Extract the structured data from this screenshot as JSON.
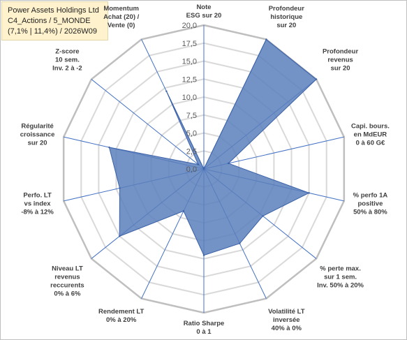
{
  "title": {
    "line1": "Power Assets Holdings Ltd",
    "line2": "C4_Actions / 5_MONDE",
    "line3": "(7,1% | 11,4%) / 2026W09"
  },
  "chart_data": {
    "type": "radar",
    "rmax": 20,
    "ticks": [
      "0,0",
      "2,5",
      "5,0",
      "7,5",
      "10,0",
      "12,5",
      "15,0",
      "17,5",
      "20,0"
    ],
    "tick_values": [
      0,
      2.5,
      5,
      7.5,
      10,
      12.5,
      15,
      17.5,
      20
    ],
    "axes": [
      [
        "Note",
        "ESG sur 20"
      ],
      [
        "Profondeur",
        "historique",
        "sur 20"
      ],
      [
        "Profondeur",
        "revenus",
        "sur 20"
      ],
      [
        "Capi. bours.",
        "en MdEUR",
        "0 à 60 G€"
      ],
      [
        "% perfo 1A",
        "positive",
        "50% à 80%"
      ],
      [
        "% perte max.",
        "sur 1 sem.",
        "Inv. 50% à 20%"
      ],
      [
        "Volatilité LT",
        "inversée",
        "40% à 0%"
      ],
      [
        "Ratio Sharpe",
        "0 à 1"
      ],
      [
        "Rendement LT",
        "0% à 20%"
      ],
      [
        "Niveau LT",
        "revenus",
        "reccurents",
        "0% à 6%"
      ],
      [
        "Perfo. LT",
        "vs index",
        "-8% à 12%"
      ],
      [
        "Régularité",
        "croissance",
        "sur 20"
      ],
      [
        "Z-score",
        "10 sem.",
        "Inv. 2 à -2"
      ],
      [
        "Momentum",
        "Achat (20) /",
        "Vente (0)"
      ]
    ],
    "values": [
      0,
      20,
      20,
      3.5,
      15,
      10.5,
      11.5,
      12,
      6.5,
      15,
      12,
      13.5,
      1,
      12
    ],
    "series_fill": "#5b7fbc",
    "series_stroke": "#3a60a8",
    "grid_color": "#d9d9d9",
    "spoke_color": "#4472c4"
  }
}
